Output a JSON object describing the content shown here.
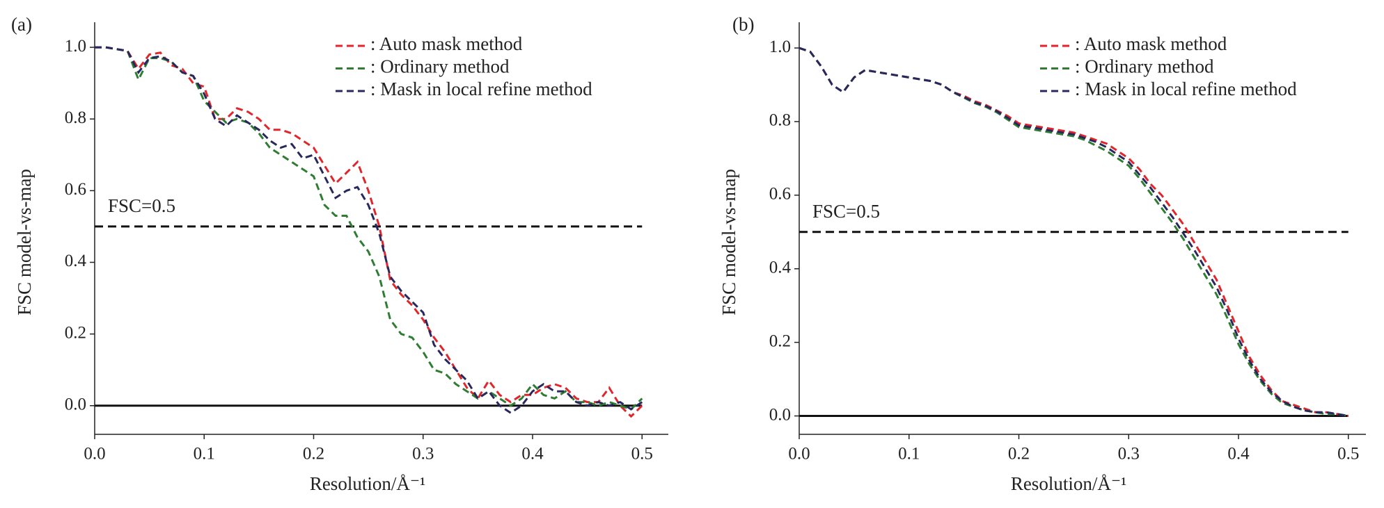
{
  "chart_data": [
    {
      "type": "line",
      "panel_label": "(a)",
      "x_label": "Resolution/Å⁻¹",
      "y_label": "FSC model-vs-map",
      "annotation": "FSC=0.5",
      "threshold": 0.5,
      "xlim": [
        0,
        0.524
      ],
      "ylim": [
        -0.08,
        1.07
      ],
      "xticks": [
        {
          "value": 0,
          "label": "0.0"
        },
        0.1,
        0.2,
        0.3,
        0.4,
        0.5
      ],
      "yticks": [
        {
          "value": 0,
          "label": "0.0"
        },
        0.2,
        0.4,
        0.6,
        0.8,
        {
          "value": 1,
          "label": "1.0"
        }
      ],
      "x": [
        0,
        0.01,
        0.02,
        0.03,
        0.04,
        0.05,
        0.06,
        0.07,
        0.08,
        0.09,
        0.1,
        0.11,
        0.12,
        0.13,
        0.14,
        0.15,
        0.16,
        0.17,
        0.18,
        0.19,
        0.2,
        0.21,
        0.22,
        0.23,
        0.24,
        0.25,
        0.26,
        0.27,
        0.28,
        0.29,
        0.3,
        0.31,
        0.32,
        0.33,
        0.34,
        0.35,
        0.36,
        0.37,
        0.38,
        0.39,
        0.4,
        0.41,
        0.42,
        0.43,
        0.44,
        0.45,
        0.46,
        0.47,
        0.48,
        0.49,
        0.5
      ],
      "series": [
        {
          "name": ": Auto mask method",
          "color": "#e0262b",
          "values": [
            1.0,
            1.0,
            0.995,
            0.99,
            0.94,
            0.98,
            0.985,
            0.95,
            0.94,
            0.9,
            0.89,
            0.8,
            0.8,
            0.83,
            0.82,
            0.8,
            0.77,
            0.77,
            0.76,
            0.74,
            0.72,
            0.67,
            0.62,
            0.65,
            0.68,
            0.6,
            0.5,
            0.35,
            0.31,
            0.28,
            0.24,
            0.19,
            0.15,
            0.1,
            0.05,
            0.02,
            0.07,
            0.03,
            0.01,
            0.03,
            0.03,
            0.05,
            0.06,
            0.05,
            0.02,
            0.01,
            0.01,
            0.05,
            0.0,
            -0.03,
            0.0
          ]
        },
        {
          "name": ": Ordinary method",
          "color": "#2e7d32",
          "values": [
            1.0,
            1.0,
            0.995,
            0.99,
            0.91,
            0.97,
            0.97,
            0.96,
            0.93,
            0.92,
            0.85,
            0.82,
            0.79,
            0.8,
            0.79,
            0.76,
            0.72,
            0.7,
            0.68,
            0.66,
            0.64,
            0.56,
            0.53,
            0.53,
            0.47,
            0.43,
            0.36,
            0.24,
            0.2,
            0.19,
            0.15,
            0.1,
            0.09,
            0.06,
            0.04,
            0.02,
            0.04,
            0.02,
            0.0,
            0.02,
            0.06,
            0.03,
            0.02,
            0.04,
            0.01,
            0.01,
            0.0,
            0.01,
            0.0,
            -0.01,
            0.02
          ]
        },
        {
          "name": ": Mask in local refine method",
          "color": "#28285e",
          "values": [
            1.0,
            1.0,
            0.995,
            0.99,
            0.93,
            0.97,
            0.975,
            0.96,
            0.93,
            0.92,
            0.87,
            0.8,
            0.78,
            0.81,
            0.79,
            0.77,
            0.74,
            0.72,
            0.73,
            0.69,
            0.7,
            0.64,
            0.58,
            0.6,
            0.61,
            0.56,
            0.48,
            0.36,
            0.32,
            0.29,
            0.26,
            0.17,
            0.13,
            0.1,
            0.07,
            0.02,
            0.04,
            0.0,
            -0.02,
            0.0,
            0.04,
            0.06,
            0.04,
            0.04,
            0.01,
            0.0,
            0.01,
            0.0,
            0.01,
            -0.01,
            0.01
          ]
        }
      ]
    },
    {
      "type": "line",
      "panel_label": "(b)",
      "x_label": "Resolution/Å⁻¹",
      "y_label": "FSC model-vs-map",
      "annotation": "FSC=0.5",
      "threshold": 0.5,
      "xlim": [
        0,
        0.516
      ],
      "ylim": [
        -0.05,
        1.07
      ],
      "xticks": [
        {
          "value": 0,
          "label": "0.0"
        },
        0.1,
        0.2,
        0.3,
        0.4,
        0.5
      ],
      "yticks": [
        {
          "value": 0,
          "label": "0.0"
        },
        0.2,
        0.4,
        0.6,
        0.8,
        {
          "value": 1,
          "label": "1.0"
        }
      ],
      "x": [
        0,
        0.01,
        0.02,
        0.03,
        0.04,
        0.05,
        0.06,
        0.07,
        0.08,
        0.09,
        0.1,
        0.11,
        0.12,
        0.13,
        0.14,
        0.15,
        0.16,
        0.17,
        0.18,
        0.19,
        0.2,
        0.21,
        0.22,
        0.23,
        0.24,
        0.25,
        0.26,
        0.27,
        0.28,
        0.29,
        0.3,
        0.31,
        0.32,
        0.33,
        0.34,
        0.35,
        0.36,
        0.37,
        0.38,
        0.39,
        0.4,
        0.41,
        0.42,
        0.43,
        0.44,
        0.45,
        0.46,
        0.47,
        0.48,
        0.49,
        0.5
      ],
      "series": [
        {
          "name": ": Auto mask method",
          "color": "#e0262b",
          "values": [
            1.0,
            0.99,
            0.95,
            0.9,
            0.88,
            0.92,
            0.94,
            0.935,
            0.93,
            0.925,
            0.92,
            0.915,
            0.91,
            0.9,
            0.88,
            0.87,
            0.855,
            0.845,
            0.83,
            0.815,
            0.795,
            0.79,
            0.785,
            0.78,
            0.775,
            0.77,
            0.76,
            0.75,
            0.74,
            0.72,
            0.7,
            0.67,
            0.63,
            0.6,
            0.56,
            0.52,
            0.47,
            0.42,
            0.37,
            0.3,
            0.23,
            0.16,
            0.11,
            0.07,
            0.04,
            0.03,
            0.02,
            0.01,
            0.01,
            0.005,
            0.0
          ]
        },
        {
          "name": ": Ordinary method",
          "color": "#2e7d32",
          "values": [
            1.0,
            0.99,
            0.95,
            0.9,
            0.88,
            0.92,
            0.94,
            0.935,
            0.93,
            0.925,
            0.92,
            0.915,
            0.91,
            0.9,
            0.88,
            0.865,
            0.85,
            0.84,
            0.825,
            0.805,
            0.785,
            0.78,
            0.775,
            0.77,
            0.765,
            0.76,
            0.75,
            0.735,
            0.72,
            0.7,
            0.68,
            0.645,
            0.605,
            0.565,
            0.525,
            0.48,
            0.43,
            0.38,
            0.33,
            0.265,
            0.195,
            0.14,
            0.095,
            0.06,
            0.035,
            0.025,
            0.015,
            0.01,
            0.005,
            0.005,
            0.0
          ]
        },
        {
          "name": ": Mask in local refine method",
          "color": "#28285e",
          "values": [
            1.0,
            0.99,
            0.95,
            0.9,
            0.88,
            0.92,
            0.94,
            0.935,
            0.93,
            0.925,
            0.92,
            0.915,
            0.91,
            0.9,
            0.88,
            0.867,
            0.852,
            0.842,
            0.828,
            0.81,
            0.79,
            0.785,
            0.78,
            0.775,
            0.77,
            0.765,
            0.755,
            0.745,
            0.73,
            0.71,
            0.69,
            0.655,
            0.62,
            0.58,
            0.54,
            0.495,
            0.45,
            0.4,
            0.35,
            0.285,
            0.21,
            0.15,
            0.1,
            0.065,
            0.04,
            0.025,
            0.015,
            0.01,
            0.01,
            0.005,
            0.0
          ]
        }
      ]
    }
  ]
}
